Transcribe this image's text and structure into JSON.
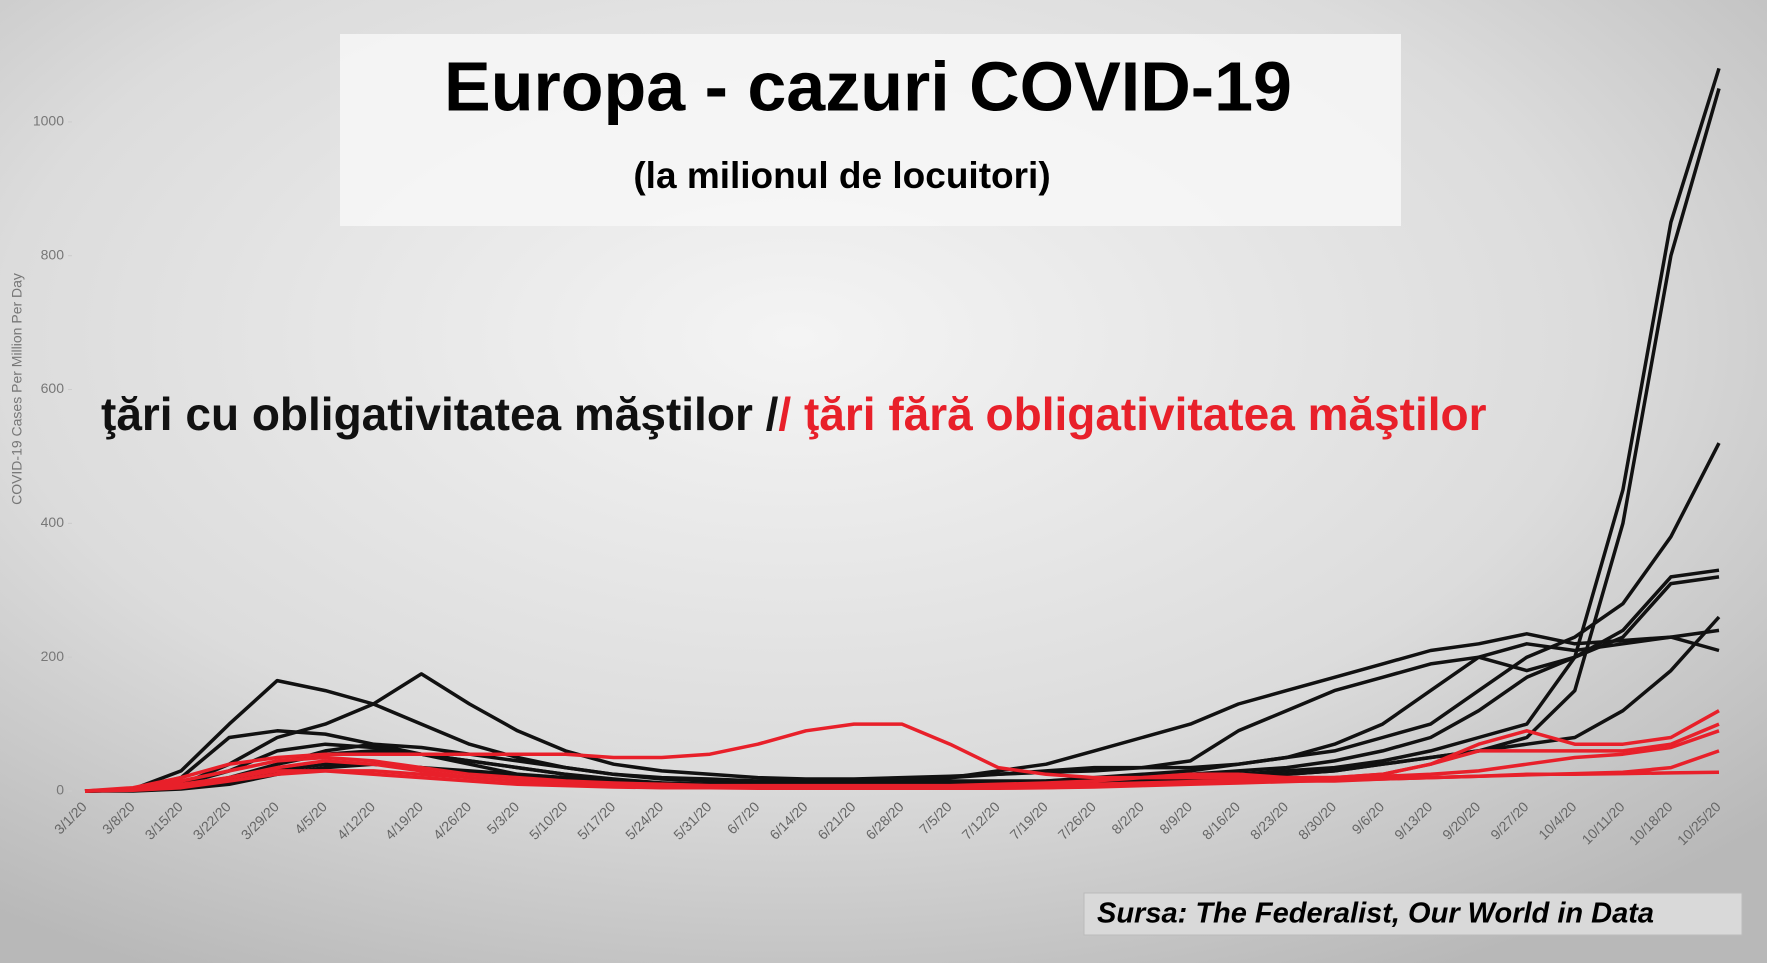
{
  "chart_data": {
    "type": "line",
    "title": "Europa - cazuri COVID-19",
    "subtitle": "(la milionul de locuitori)",
    "annotations": [
      "ţări cu obligativitatea măştilor /",
      "/ ţări fără obligativitatea măştilor"
    ],
    "source": "Sursa: The Federalist, Our World in Data",
    "y_label": "COVID-19 Cases Per Million Per Day",
    "categories": [
      "3/1/20",
      "3/8/20",
      "3/15/20",
      "3/22/20",
      "3/29/20",
      "4/5/20",
      "4/12/20",
      "4/19/20",
      "4/26/20",
      "5/3/20",
      "5/10/20",
      "5/17/20",
      "5/24/20",
      "5/31/20",
      "6/7/20",
      "6/14/20",
      "6/21/20",
      "6/28/20",
      "7/5/20",
      "7/12/20",
      "7/19/20",
      "7/26/20",
      "8/2/20",
      "8/9/20",
      "8/16/20",
      "8/23/20",
      "8/30/20",
      "9/6/20",
      "9/13/20",
      "9/20/20",
      "9/27/20",
      "10/4/20",
      "10/11/20",
      "10/18/20",
      "10/25/20"
    ],
    "ylim": [
      0,
      1100
    ],
    "yticks": [
      0,
      200,
      400,
      600,
      800,
      1000
    ],
    "series": [
      {
        "color": "#111111",
        "values": [
          0,
          2,
          10,
          30,
          60,
          70,
          65,
          55,
          45,
          35,
          25,
          15,
          10,
          8,
          6,
          5,
          5,
          5,
          6,
          8,
          10,
          12,
          15,
          20,
          25,
          30,
          35,
          45,
          60,
          80,
          100,
          200,
          450,
          850,
          1080
        ]
      },
      {
        "color": "#111111",
        "values": [
          0,
          1,
          5,
          15,
          30,
          40,
          40,
          35,
          28,
          20,
          15,
          10,
          8,
          6,
          5,
          5,
          5,
          5,
          5,
          6,
          8,
          10,
          12,
          15,
          20,
          25,
          30,
          40,
          50,
          60,
          80,
          150,
          400,
          800,
          1050
        ]
      },
      {
        "color": "#111111",
        "values": [
          0,
          2,
          20,
          80,
          90,
          85,
          70,
          55,
          40,
          25,
          15,
          10,
          8,
          10,
          15,
          15,
          15,
          15,
          20,
          30,
          40,
          60,
          80,
          100,
          130,
          150,
          170,
          190,
          210,
          220,
          235,
          220,
          225,
          230,
          210
        ]
      },
      {
        "color": "#111111",
        "values": [
          0,
          1,
          5,
          20,
          40,
          55,
          60,
          55,
          45,
          35,
          25,
          18,
          12,
          10,
          8,
          7,
          7,
          8,
          10,
          12,
          15,
          20,
          25,
          30,
          40,
          50,
          60,
          80,
          100,
          150,
          200,
          230,
          280,
          380,
          520
        ]
      },
      {
        "color": "#111111",
        "values": [
          0,
          3,
          30,
          100,
          165,
          150,
          130,
          100,
          70,
          50,
          35,
          25,
          18,
          15,
          12,
          12,
          12,
          15,
          20,
          25,
          30,
          35,
          35,
          35,
          40,
          50,
          70,
          100,
          150,
          200,
          220,
          210,
          220,
          230,
          240
        ]
      },
      {
        "color": "#111111",
        "values": [
          0,
          1,
          10,
          40,
          80,
          100,
          130,
          175,
          130,
          90,
          60,
          40,
          30,
          25,
          20,
          18,
          18,
          20,
          22,
          25,
          28,
          30,
          35,
          45,
          90,
          120,
          150,
          170,
          190,
          200,
          180,
          200,
          240,
          320,
          330
        ]
      },
      {
        "color": "#111111",
        "values": [
          0,
          1,
          5,
          15,
          40,
          60,
          70,
          65,
          55,
          45,
          35,
          25,
          20,
          18,
          15,
          15,
          15,
          15,
          15,
          15,
          15,
          18,
          20,
          25,
          30,
          35,
          45,
          60,
          80,
          120,
          170,
          200,
          230,
          310,
          320
        ]
      },
      {
        "color": "#111111",
        "values": [
          0,
          0,
          3,
          10,
          25,
          35,
          40,
          35,
          30,
          25,
          20,
          15,
          12,
          10,
          10,
          10,
          10,
          10,
          10,
          10,
          12,
          14,
          16,
          20,
          22,
          25,
          30,
          40,
          50,
          60,
          70,
          80,
          120,
          180,
          260
        ]
      },
      {
        "color": "#e8202a",
        "values": [
          0,
          5,
          20,
          40,
          50,
          55,
          55,
          55,
          55,
          55,
          55,
          50,
          50,
          55,
          70,
          90,
          100,
          100,
          70,
          35,
          25,
          20,
          20,
          20,
          20,
          20,
          20,
          25,
          40,
          70,
          90,
          70,
          70,
          80,
          120
        ]
      },
      {
        "color": "#e8202a",
        "values": [
          0,
          3,
          15,
          30,
          45,
          50,
          45,
          35,
          25,
          20,
          15,
          12,
          10,
          8,
          8,
          8,
          8,
          8,
          8,
          10,
          12,
          15,
          20,
          25,
          25,
          20,
          20,
          25,
          40,
          60,
          60,
          60,
          60,
          70,
          100
        ]
      },
      {
        "color": "#e8202a",
        "values": [
          0,
          2,
          10,
          20,
          30,
          30,
          25,
          20,
          15,
          10,
          8,
          6,
          5,
          5,
          5,
          5,
          5,
          5,
          5,
          5,
          5,
          8,
          10,
          12,
          14,
          15,
          15,
          18,
          20,
          22,
          25,
          25,
          26,
          27,
          28
        ]
      },
      {
        "color": "#e8202a",
        "values": [
          0,
          2,
          8,
          20,
          35,
          45,
          40,
          30,
          20,
          15,
          10,
          8,
          6,
          5,
          5,
          4,
          4,
          4,
          5,
          6,
          8,
          10,
          12,
          14,
          16,
          18,
          20,
          22,
          25,
          30,
          40,
          50,
          55,
          65,
          90
        ]
      },
      {
        "color": "#e8202a",
        "values": [
          0,
          1,
          5,
          15,
          25,
          30,
          30,
          25,
          20,
          15,
          10,
          8,
          6,
          5,
          4,
          4,
          4,
          4,
          4,
          4,
          5,
          6,
          8,
          10,
          12,
          14,
          16,
          18,
          20,
          22,
          24,
          26,
          28,
          35,
          60
        ]
      }
    ]
  }
}
